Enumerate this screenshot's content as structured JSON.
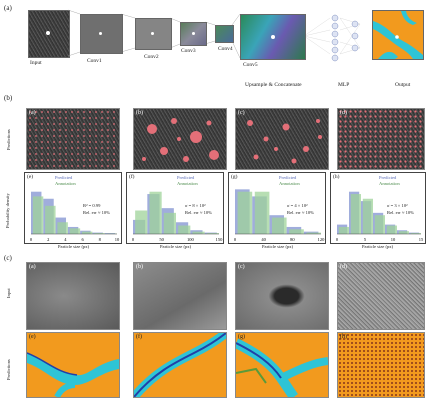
{
  "figure": {
    "part_a": {
      "label": "(a)",
      "stages": [
        "Input",
        "Conv1",
        "Conv2",
        "Conv3",
        "Conv4",
        "Conv5",
        "Upsample & Concatenate",
        "MLP",
        "Output"
      ]
    },
    "part_b": {
      "label": "(b)",
      "row_label": "Predictions",
      "image_panels": [
        "(a)",
        "(b)",
        "(c)",
        "(d)"
      ],
      "y_axis_label": "Probability density",
      "x_axis_label": "Particle size (px)",
      "histograms": [
        {
          "panel": "(e)",
          "legend": [
            "Predicted",
            "Annotation"
          ],
          "stats": [
            "R² = 0.99",
            "Rel. err ≈ 10%"
          ],
          "x_ticks": [
            "0",
            "2",
            "4",
            "6",
            "8",
            "10"
          ]
        },
        {
          "panel": "(f)",
          "legend": [
            "Predicted",
            "Annotation"
          ],
          "stats": [
            "σ = 8 × 10²",
            "Rel. err ≈ 10%"
          ],
          "x_ticks": [
            "0",
            "50",
            "100",
            "150"
          ]
        },
        {
          "panel": "(g)",
          "legend": [
            "Predicted",
            "Annotation"
          ],
          "stats": [
            "σ = 4 × 10²",
            "Rel. err ≈ 10%"
          ],
          "x_ticks": [
            "0",
            "40",
            "80",
            "120"
          ]
        },
        {
          "panel": "(h)",
          "legend": [
            "Predicted",
            "Annotation"
          ],
          "stats": [
            "σ = 3 × 10²",
            "Rel. err ≈ 10%"
          ],
          "x_ticks": [
            "0",
            "5",
            "10",
            "15"
          ]
        }
      ]
    },
    "part_c": {
      "label": "(c)",
      "row_labels": [
        "Input",
        "Predictions"
      ],
      "input_panels": [
        "(a)",
        "(b)",
        "(c)",
        "(d)"
      ],
      "pred_panels": [
        "(e)",
        "(f)",
        "(g)",
        "(h)"
      ]
    },
    "colors": {
      "orange": "#f29a1e",
      "cyan": "#2ec4d6",
      "blue": "#2140a8",
      "pink": "#e36f78",
      "hist_blue": "#8f9fd6",
      "hist_green": "#9fd39a"
    }
  },
  "chart_data": [
    {
      "type": "bar",
      "title": "(e)",
      "series": [
        {
          "name": "Predicted",
          "values": [
            0.9,
            0.75,
            0.35,
            0.15,
            0.07,
            0.03,
            0.02
          ]
        },
        {
          "name": "Annotation",
          "values": [
            0.8,
            0.6,
            0.25,
            0.12,
            0.05,
            0.02,
            0.01
          ]
        }
      ],
      "xlabel": "Particle size (px)",
      "ylabel": "Probability density"
    },
    {
      "type": "bar",
      "title": "(f)",
      "series": [
        {
          "name": "Predicted",
          "values": [
            0.3,
            0.85,
            0.55,
            0.25,
            0.08,
            0.03
          ]
        },
        {
          "name": "Annotation",
          "values": [
            0.5,
            0.9,
            0.45,
            0.18,
            0.05,
            0.02
          ]
        }
      ],
      "xlabel": "Particle size (px)",
      "ylabel": "Probability density"
    },
    {
      "type": "bar",
      "title": "(g)",
      "series": [
        {
          "name": "Predicted",
          "values": [
            0.95,
            0.8,
            0.4,
            0.15,
            0.05
          ]
        },
        {
          "name": "Annotation",
          "values": [
            0.9,
            0.9,
            0.35,
            0.1,
            0.03
          ]
        }
      ],
      "xlabel": "Particle size (px)",
      "ylabel": "Probability density"
    },
    {
      "type": "bar",
      "title": "(h)",
      "series": [
        {
          "name": "Predicted",
          "values": [
            0.2,
            0.9,
            0.7,
            0.45,
            0.2,
            0.08,
            0.03
          ]
        },
        {
          "name": "Annotation",
          "values": [
            0.15,
            0.85,
            0.75,
            0.4,
            0.18,
            0.06,
            0.02
          ]
        }
      ],
      "xlabel": "Particle size (px)",
      "ylabel": "Probability density"
    }
  ]
}
